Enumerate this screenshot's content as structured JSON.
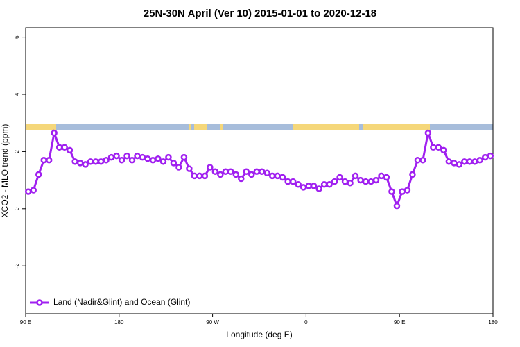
{
  "chart_data": {
    "type": "line",
    "title": "25N-30N April (Ver 10)   2015-01-01 to 2020-12-18",
    "x_label": "Longitude (deg E)",
    "y_label": "XCO2 - MLO trend (ppm)",
    "xlim": [
      90,
      540
    ],
    "ylim": [
      -3.67,
      6.33
    ],
    "xticks": [
      {
        "value": 90,
        "label": "90 E"
      },
      180,
      {
        "value": 270,
        "label": "90 W"
      },
      {
        "value": 360,
        "label": "0"
      },
      {
        "value": 450,
        "label": "90 E"
      },
      {
        "value": 540,
        "label": "180"
      }
    ],
    "yticks": [
      -2,
      0,
      2,
      4,
      6
    ],
    "legend_position": "bottom-left",
    "x": [
      92.5,
      97.5,
      102.5,
      107.5,
      112.5,
      117.5,
      122.5,
      127.5,
      132.5,
      137.5,
      142.5,
      147.5,
      152.5,
      157.5,
      162.5,
      167.5,
      172.5,
      177.5,
      182.5,
      187.5,
      192.5,
      197.5,
      202.5,
      207.5,
      212.5,
      217.5,
      222.5,
      227.5,
      232.5,
      237.5,
      242.5,
      247.5,
      252.5,
      257.5,
      262.5,
      267.5,
      272.5,
      277.5,
      282.5,
      287.5,
      292.5,
      297.5,
      302.5,
      307.5,
      312.5,
      317.5,
      322.5,
      327.5,
      332.5,
      337.5,
      342.5,
      347.5,
      352.5,
      357.5,
      362.5,
      367.5,
      372.5,
      377.5,
      382.5,
      387.5,
      392.5,
      397.5,
      402.5,
      407.5,
      412.5,
      417.5,
      422.5,
      427.5,
      432.5,
      437.5,
      442.5,
      447.5,
      452.5,
      457.5,
      462.5,
      467.5,
      472.5,
      477.5,
      482.5,
      487.5,
      492.5,
      497.5,
      502.5,
      507.5,
      512.5,
      517.5,
      522.5,
      527.5,
      532.5,
      537.5
    ],
    "series": [
      {
        "name": "Land (Nadir&Glint) and Ocean (Glint)",
        "color": "#a020f0",
        "values": [
          0.6,
          0.65,
          1.2,
          1.7,
          1.7,
          2.65,
          2.15,
          2.15,
          2.05,
          1.65,
          1.6,
          1.55,
          1.65,
          1.65,
          1.65,
          1.7,
          1.8,
          1.85,
          1.7,
          1.85,
          1.7,
          1.85,
          1.8,
          1.75,
          1.7,
          1.75,
          1.65,
          1.8,
          1.6,
          1.45,
          1.8,
          1.4,
          1.15,
          1.15,
          1.15,
          1.45,
          1.3,
          1.2,
          1.3,
          1.3,
          1.2,
          1.05,
          1.3,
          1.2,
          1.3,
          1.3,
          1.25,
          1.15,
          1.15,
          1.1,
          0.95,
          0.95,
          0.85,
          0.75,
          0.8,
          0.8,
          0.7,
          0.85,
          0.85,
          0.95,
          1.1,
          0.95,
          0.9,
          1.15,
          1.0,
          0.95,
          0.95,
          1.0,
          1.15,
          1.1,
          0.6,
          0.1,
          0.6,
          0.65,
          1.2,
          1.7,
          1.7,
          2.65,
          2.15,
          2.15,
          2.05,
          1.65,
          1.6,
          1.55,
          1.65,
          1.65,
          1.65,
          1.7,
          1.8,
          1.85
        ]
      }
    ]
  }
}
